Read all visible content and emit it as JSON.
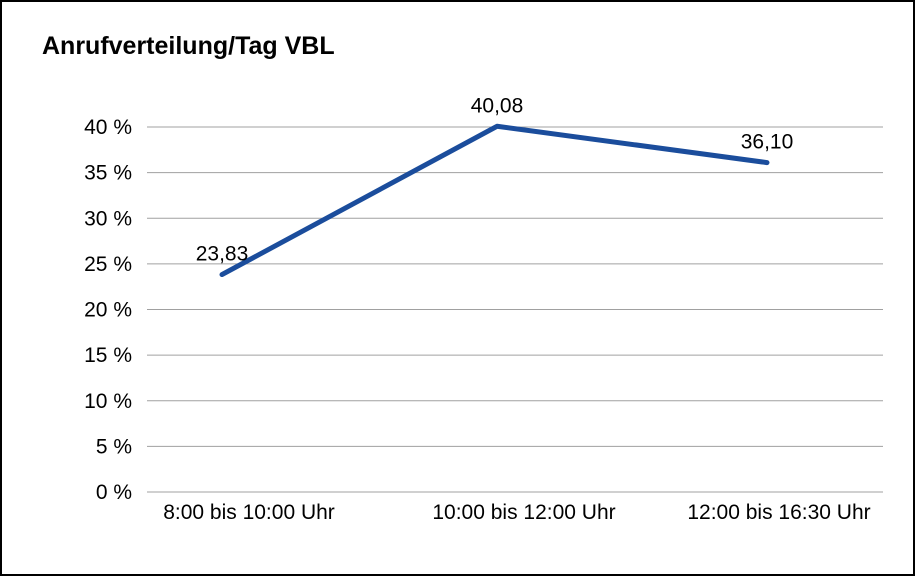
{
  "chart": {
    "title": "Anrufverteilung/Tag VBL"
  },
  "chart_data": {
    "type": "line",
    "title": "Anrufverteilung/Tag VBL",
    "categories": [
      "8:00 bis 10:00 Uhr",
      "10:00 bis 12:00 Uhr",
      "12:00 bis 16:30 Uhr"
    ],
    "values": [
      23.83,
      40.08,
      36.1
    ],
    "data_labels": [
      "23,83",
      "40,08",
      "36,10"
    ],
    "xlabel": "",
    "ylabel": "",
    "ylim": [
      0,
      40
    ],
    "ytick_step": 5,
    "ytick_suffix": " %",
    "ytick_labels": [
      "0 %",
      "5 %",
      "10 %",
      "15 %",
      "20 %",
      "25 %",
      "30 %",
      "35 %",
      "40 %"
    ],
    "grid": true,
    "legend_position": "none",
    "line_color": "#1b4d9c",
    "grid_color": "#a0a0a0",
    "text_color": "#000000",
    "background_color": "#ffffff",
    "border_color": "#000000"
  }
}
